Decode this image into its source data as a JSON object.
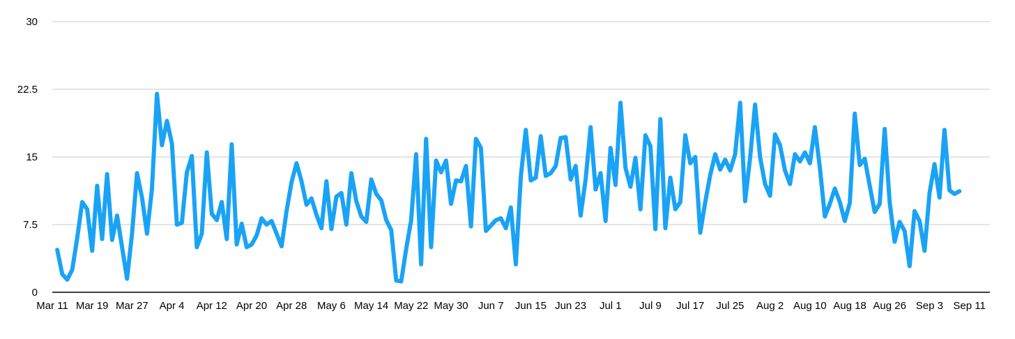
{
  "chart_data": {
    "type": "line",
    "title": "",
    "xlabel": "",
    "ylabel": "",
    "ylim": [
      0,
      30
    ],
    "y_ticks": [
      "0",
      "7.5",
      "15",
      "22.5",
      "30"
    ],
    "y_tick_values": [
      0,
      7.5,
      15,
      22.5,
      30
    ],
    "x_ticks": [
      "Mar 11",
      "Mar 19",
      "Mar 27",
      "Apr 4",
      "Apr 12",
      "Apr 20",
      "Apr 28",
      "May 6",
      "May 14",
      "May 22",
      "May 30",
      "Jun 7",
      "Jun 15",
      "Jun 23",
      "Jul 1",
      "Jul 9",
      "Jul 17",
      "Jul 25",
      "Aug 2",
      "Aug 10",
      "Aug 18",
      "Aug 26",
      "Sep 3",
      "Sep 11"
    ],
    "grid": true,
    "legend": "none",
    "color": "#1aa3f5",
    "start": "Mar 12",
    "end": "Sep 9",
    "values": [
      4.7,
      2.0,
      1.4,
      2.5,
      6.0,
      10.0,
      9.2,
      4.6,
      11.8,
      5.9,
      13.1,
      5.8,
      8.5,
      5.0,
      1.5,
      6.5,
      13.2,
      10.5,
      6.5,
      11.5,
      22.0,
      16.3,
      19.0,
      16.5,
      7.5,
      7.7,
      13.3,
      15.1,
      5.0,
      6.5,
      15.5,
      8.7,
      8.0,
      10.0,
      5.9,
      16.4,
      5.3,
      7.6,
      5.0,
      5.3,
      6.3,
      8.2,
      7.5,
      7.9,
      6.5,
      5.1,
      9.0,
      12.2,
      14.3,
      12.3,
      9.7,
      10.4,
      8.6,
      7.1,
      12.3,
      7.0,
      10.6,
      11.0,
      7.5,
      13.2,
      10.1,
      8.4,
      7.8,
      12.5,
      10.9,
      10.2,
      8.0,
      6.9,
      1.3,
      1.2,
      4.8,
      8.0,
      15.3,
      3.1,
      17.0,
      5.0,
      14.6,
      13.3,
      14.6,
      9.8,
      12.4,
      12.3,
      14.0,
      7.3,
      17.0,
      16.0,
      6.8,
      7.4,
      8.0,
      8.2,
      7.1,
      9.4,
      3.1,
      12.8,
      18.0,
      12.4,
      12.7,
      17.3,
      12.9,
      13.2,
      14.0,
      17.1,
      17.2,
      12.5,
      14.0,
      8.5,
      12.5,
      18.3,
      11.4,
      13.2,
      7.9,
      16.0,
      11.9,
      21.0,
      13.8,
      11.7,
      14.9,
      9.2,
      17.4,
      16.2,
      7.0,
      19.2,
      7.1,
      12.7,
      9.2,
      10.0,
      17.4,
      14.3,
      15.0,
      6.6,
      10.0,
      13.0,
      15.3,
      13.6,
      14.7,
      13.5,
      15.3,
      21.0,
      10.1,
      14.9,
      20.8,
      15.0,
      12.0,
      10.7,
      17.5,
      16.3,
      13.5,
      12.0,
      15.3,
      14.5,
      15.5,
      14.3,
      18.3,
      13.8,
      8.4,
      9.8,
      11.5,
      10.0,
      7.9,
      9.9,
      19.8,
      14.1,
      14.8,
      11.8,
      8.9,
      9.8,
      18.1,
      10.0,
      5.6,
      7.8,
      6.8,
      2.9,
      9.0,
      7.9,
      4.6,
      11.0,
      14.2,
      10.5,
      18.0,
      11.3,
      10.9,
      11.2
    ]
  }
}
